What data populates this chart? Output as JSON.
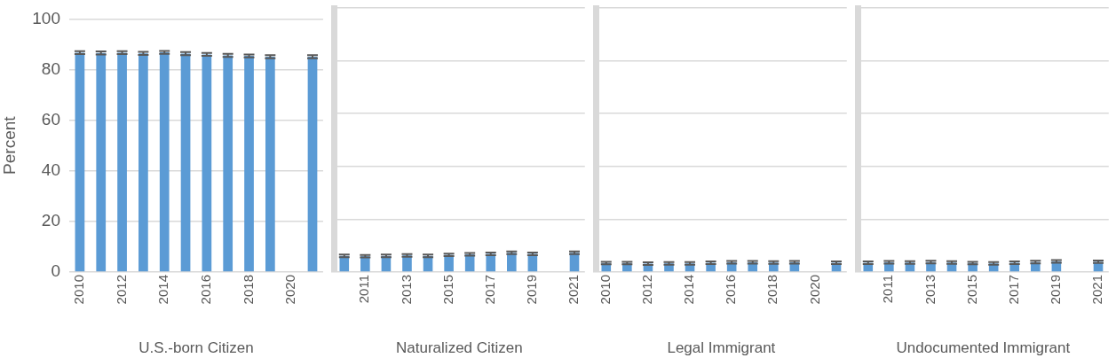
{
  "chart_data": [
    {
      "type": "bar",
      "xlabel": "U.S.-born Citizen",
      "ylabel": "Percent",
      "categories": [
        "2010",
        null,
        "2012",
        null,
        "2014",
        null,
        "2016",
        null,
        "2018",
        null,
        "2020",
        null
      ],
      "values": [
        86.7,
        86.6,
        86.7,
        86.4,
        86.8,
        86.3,
        86.0,
        85.6,
        85.4,
        85.1,
        null,
        85.1
      ],
      "errors": [
        0.6,
        0.6,
        0.6,
        0.6,
        0.6,
        0.6,
        0.6,
        0.6,
        0.6,
        0.6,
        null,
        0.6
      ],
      "color": "#5b9bd5",
      "ylim": [
        0,
        100
      ],
      "yticks": [
        0,
        20,
        40,
        60,
        80,
        100
      ],
      "grid": "y"
    },
    {
      "type": "bar",
      "xlabel": "Naturalized Citizen",
      "categories": [
        null,
        "2011",
        null,
        "2013",
        null,
        "2015",
        null,
        "2017",
        null,
        "2019",
        null,
        "2021"
      ],
      "values": [
        6.1,
        6.0,
        6.1,
        6.3,
        6.1,
        6.5,
        6.7,
        6.9,
        7.3,
        6.9,
        null,
        7.3
      ],
      "errors": [
        0.5,
        0.5,
        0.5,
        0.5,
        0.5,
        0.5,
        0.5,
        0.5,
        0.5,
        0.5,
        null,
        0.5
      ],
      "color": "#5b9bd5",
      "ylim": [
        0,
        100
      ],
      "yticks": [
        0,
        20,
        40,
        60,
        80,
        100
      ],
      "grid": "y",
      "tick_labels": "x"
    },
    {
      "type": "bar",
      "xlabel": "Legal Immigrant",
      "categories": [
        "2010",
        null,
        "2012",
        null,
        "2014",
        null,
        "2016",
        null,
        "2018",
        null,
        "2020",
        null
      ],
      "values": [
        3.4,
        3.4,
        3.2,
        3.3,
        3.3,
        3.5,
        3.7,
        3.7,
        3.6,
        3.7,
        null,
        3.5
      ],
      "errors": [
        0.5,
        0.5,
        0.5,
        0.5,
        0.5,
        0.5,
        0.5,
        0.5,
        0.5,
        0.5,
        null,
        0.5
      ],
      "color": "#5b9bd5",
      "ylim": [
        0,
        100
      ],
      "yticks": [
        0,
        20,
        40,
        60,
        80,
        100
      ],
      "grid": "y",
      "tick_labels": "x"
    },
    {
      "type": "bar",
      "xlabel": "Undocumented Immigrant",
      "categories": [
        null,
        "2011",
        null,
        "2013",
        null,
        "2015",
        null,
        "2017",
        null,
        "2019",
        null,
        "2021"
      ],
      "values": [
        3.5,
        3.7,
        3.6,
        3.8,
        3.6,
        3.4,
        3.3,
        3.5,
        3.8,
        4.0,
        null,
        3.9
      ],
      "errors": [
        0.5,
        0.5,
        0.5,
        0.5,
        0.5,
        0.5,
        0.5,
        0.5,
        0.5,
        0.5,
        null,
        0.5
      ],
      "color": "#5b9bd5",
      "ylim": [
        0,
        100
      ],
      "yticks": [
        0,
        20,
        40,
        60,
        80,
        100
      ],
      "grid": "y",
      "tick_labels": "x"
    }
  ]
}
